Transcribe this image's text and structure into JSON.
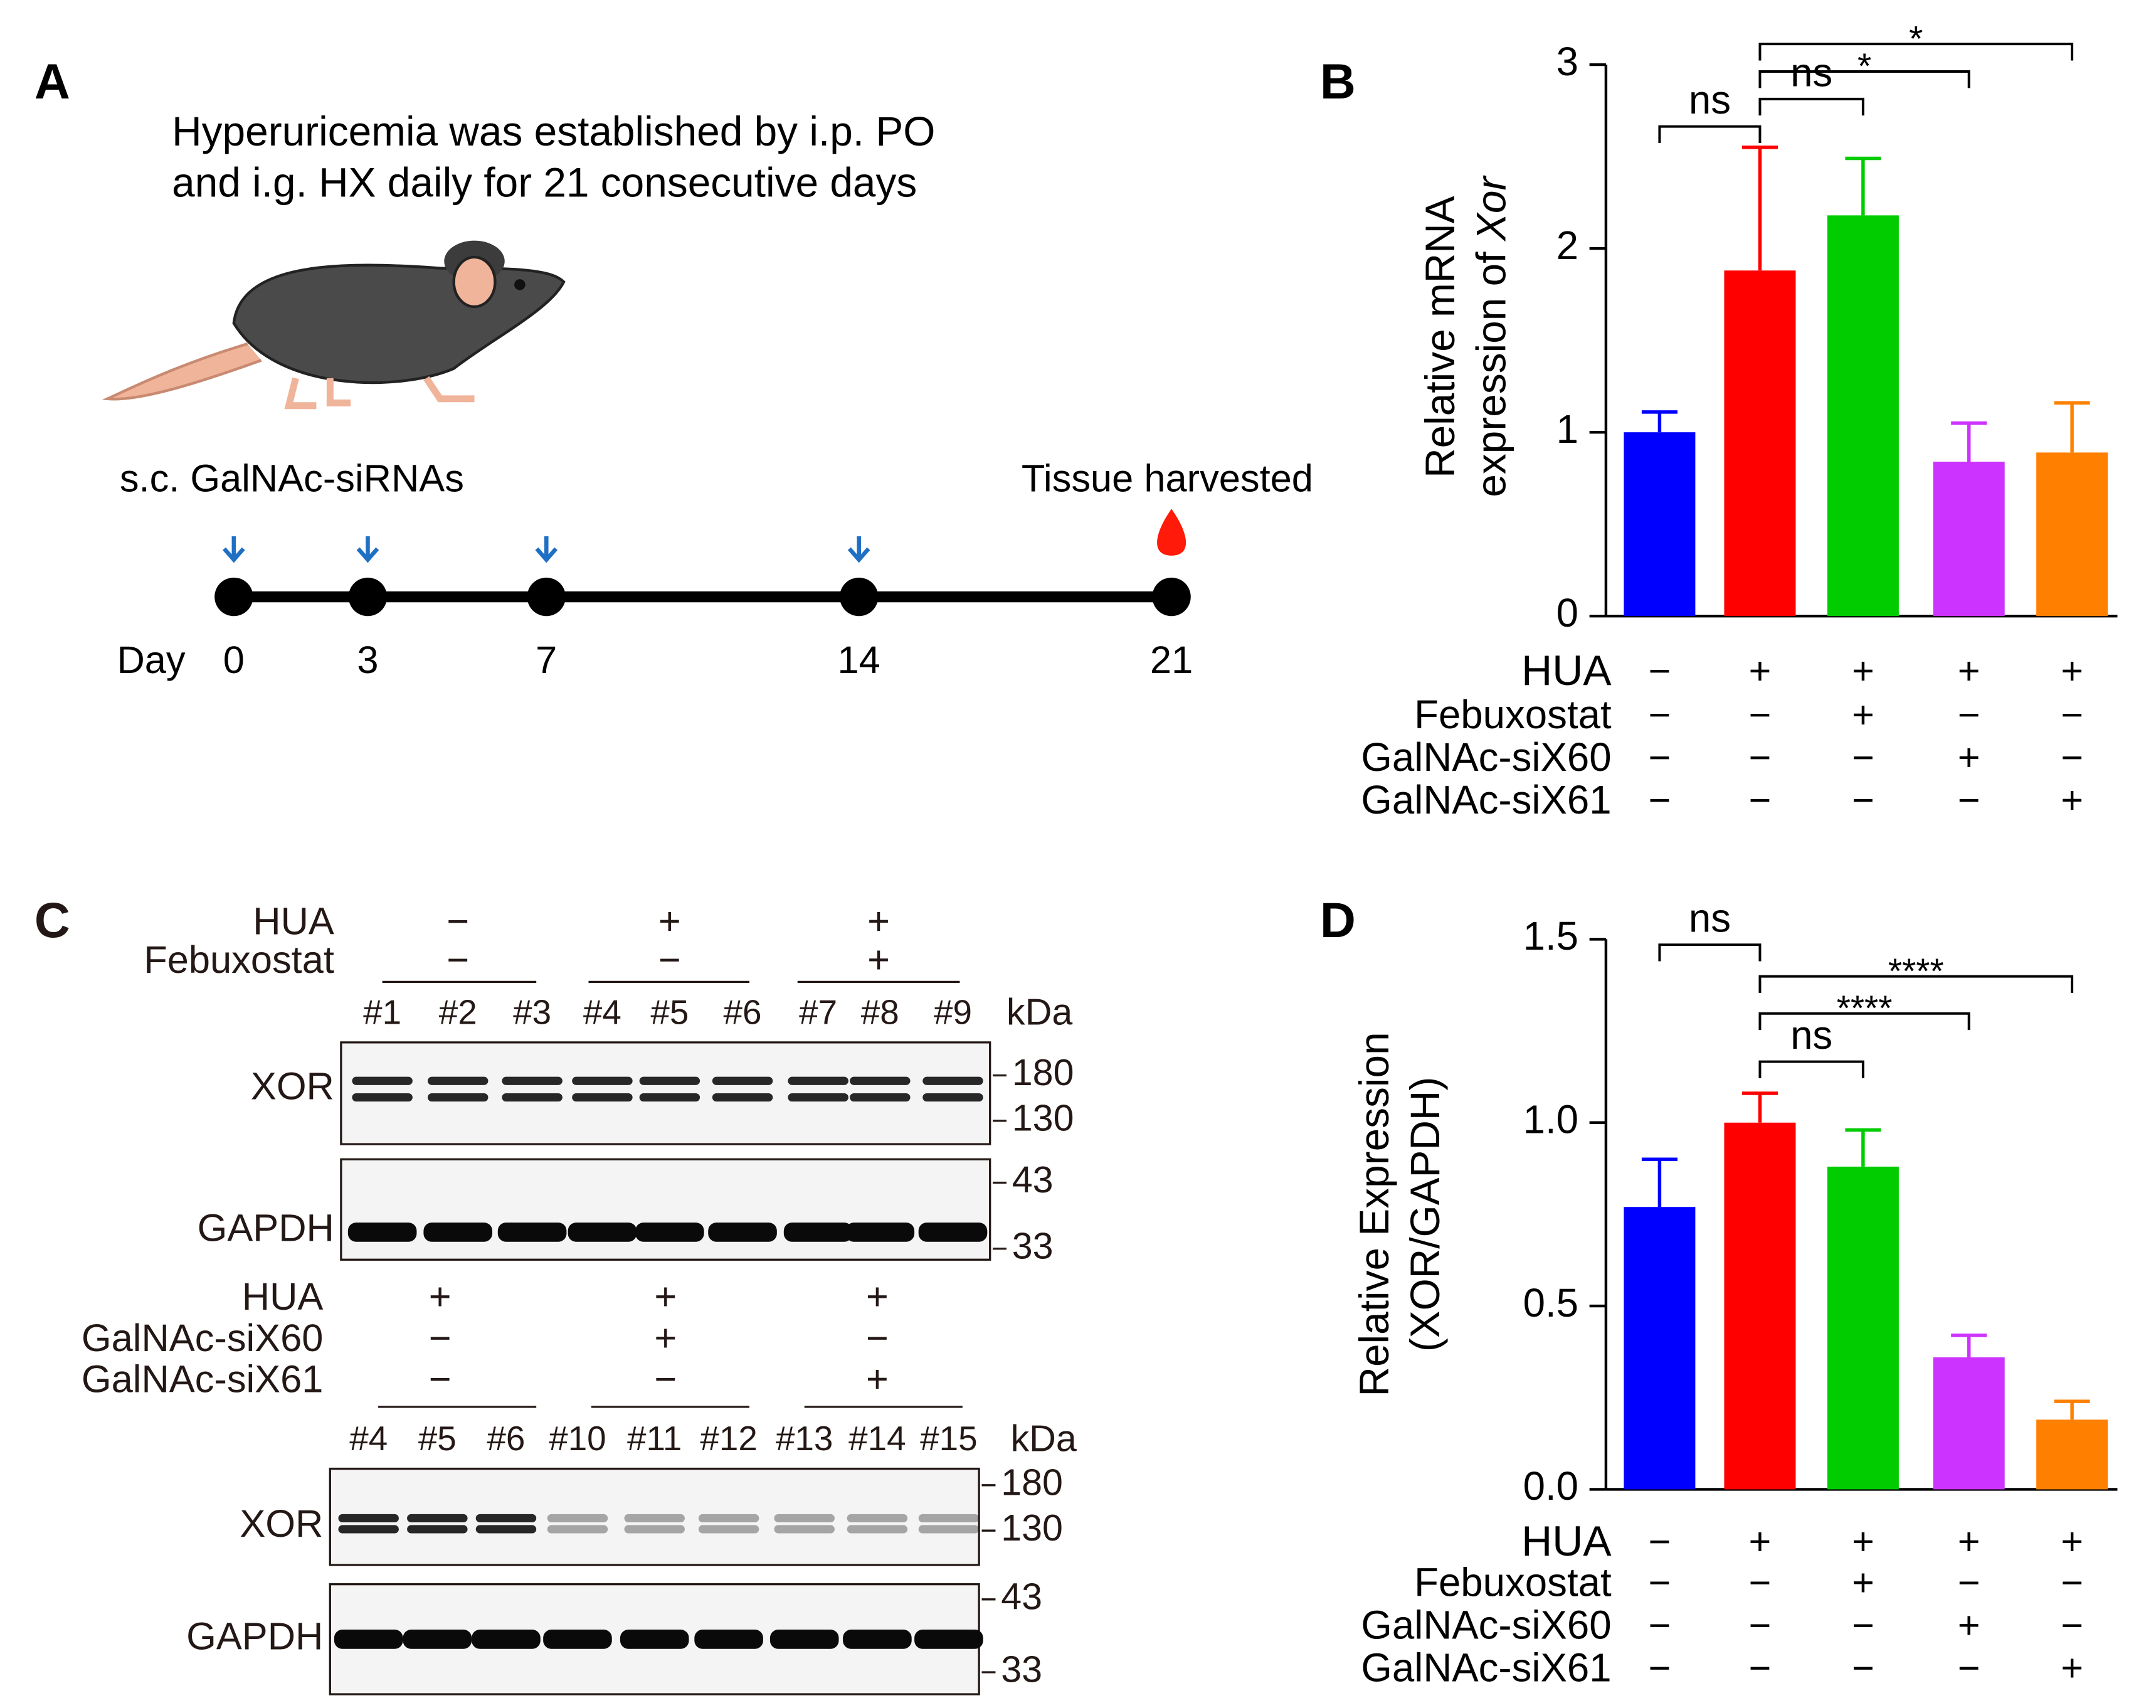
{
  "panel_a": {
    "label": "A",
    "caption": [
      "Hyperuricemia was established by i.p. PO",
      "and i.g. HX daily for 21 consecutive days"
    ],
    "injection_label": "s.c. GalNAc-siRNAs",
    "harvest_label": "Tissue harvested",
    "day_label": "Day",
    "days": [
      0,
      3,
      7,
      14,
      21
    ]
  },
  "panel_c": {
    "label": "C",
    "kda": "kDa",
    "proteins": [
      "XOR",
      "GAPDH"
    ],
    "blots": [
      {
        "conditions": [
          {
            "name": "HUA",
            "signs": [
              "−",
              "+",
              "+"
            ]
          },
          {
            "name": "Febuxostat",
            "signs": [
              "−",
              "−",
              "+"
            ]
          }
        ],
        "lanes": [
          "#1",
          "#2",
          "#3",
          "#4",
          "#5",
          "#6",
          "#7",
          "#8",
          "#9"
        ],
        "xor_markers": [
          180,
          130
        ],
        "gapdh_markers": [
          43,
          33
        ]
      },
      {
        "conditions": [
          {
            "name": "HUA",
            "signs": [
              "+",
              "+",
              "+"
            ]
          },
          {
            "name": "GalNAc-siX60",
            "signs": [
              "−",
              "+",
              "−"
            ]
          },
          {
            "name": "GalNAc-siX61",
            "signs": [
              "−",
              "−",
              "+"
            ]
          }
        ],
        "lanes": [
          "#4",
          "#5",
          "#6",
          "#10",
          "#11",
          "#12",
          "#13",
          "#14",
          "#15"
        ],
        "xor_markers": [
          180,
          130
        ],
        "gapdh_markers": [
          43,
          33
        ]
      }
    ]
  },
  "chart_data": [
    {
      "type": "bar",
      "panel": "B",
      "ylabel": [
        "Relative mRNA",
        "expression of",
        "Xor"
      ],
      "values": [
        1.0,
        1.88,
        2.18,
        0.84,
        0.89
      ],
      "errors": [
        0.11,
        0.67,
        0.31,
        0.21,
        0.27
      ],
      "colors": [
        "#0000ff",
        "#ff0000",
        "#00cc00",
        "#cc33ff",
        "#ff8000"
      ],
      "ylim": [
        0,
        3
      ],
      "yticks": [
        0,
        1,
        2,
        3
      ],
      "significance": [
        {
          "label": "ns",
          "groups": [
            0,
            1
          ]
        },
        {
          "label": "ns",
          "groups": [
            1,
            2
          ]
        },
        {
          "label": "*",
          "groups": [
            1,
            3
          ]
        },
        {
          "label": "*",
          "groups": [
            1,
            4
          ]
        }
      ],
      "treatments": [
        {
          "name": "HUA",
          "signs": [
            "−",
            "+",
            "+",
            "+",
            "+"
          ]
        },
        {
          "name": "Febuxostat",
          "signs": [
            "−",
            "−",
            "+",
            "−",
            "−"
          ]
        },
        {
          "name": "GalNAc-siX60",
          "signs": [
            "−",
            "−",
            "−",
            "+",
            "−"
          ]
        },
        {
          "name": "GalNAc-siX61",
          "signs": [
            "−",
            "−",
            "−",
            "−",
            "+"
          ]
        }
      ]
    },
    {
      "type": "bar",
      "panel": "D",
      "ylabel": [
        "Relative Expression",
        "(XOR/GAPDH)"
      ],
      "values": [
        0.77,
        1.0,
        0.88,
        0.36,
        0.19
      ],
      "errors": [
        0.13,
        0.08,
        0.1,
        0.06,
        0.05
      ],
      "colors": [
        "#0000ff",
        "#ff0000",
        "#00cc00",
        "#cc33ff",
        "#ff8000"
      ],
      "ylim": [
        0,
        1.5
      ],
      "yticks": [
        {
          "value": 0,
          "label": "0.0"
        },
        0.5,
        {
          "value": 1,
          "label": "1.0"
        },
        1.5
      ],
      "significance": [
        {
          "label": "ns",
          "groups": [
            0,
            1
          ]
        },
        {
          "label": "****",
          "groups": [
            1,
            4
          ]
        },
        {
          "label": "****",
          "groups": [
            1,
            3
          ]
        },
        {
          "label": "ns",
          "groups": [
            1,
            2
          ]
        }
      ],
      "treatments": [
        {
          "name": "HUA",
          "signs": [
            "−",
            "+",
            "+",
            "+",
            "+"
          ]
        },
        {
          "name": "Febuxostat",
          "signs": [
            "−",
            "−",
            "+",
            "−",
            "−"
          ]
        },
        {
          "name": "GalNAc-siX60",
          "signs": [
            "−",
            "−",
            "−",
            "+",
            "−"
          ]
        },
        {
          "name": "GalNAc-siX61",
          "signs": [
            "−",
            "−",
            "−",
            "−",
            "+"
          ]
        }
      ]
    }
  ]
}
